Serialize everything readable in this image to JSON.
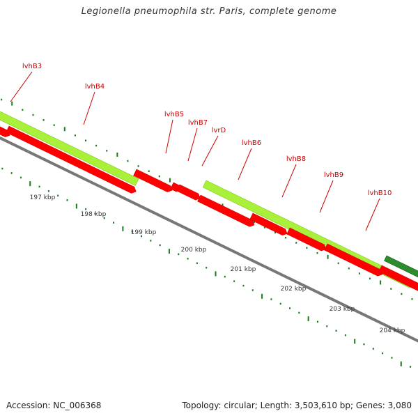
{
  "title": "Legionella pneumophila str. Paris, complete genome",
  "footer": {
    "accession": "Accession: NC_006368",
    "summary": "Topology: circular; Length: 3,503,610 bp; Genes: 3,080"
  },
  "colors": {
    "gene_forward": "#a9f03a",
    "gene_reverse": "#ff0000",
    "gene_highlight": "#2e8b2e",
    "backbone": "#777777",
    "ticks": "#1a7a1a",
    "gene_label": "#cc0000",
    "scale_label": "#333333"
  },
  "scale": {
    "unit": "kbp",
    "labels": [
      "197 kbp",
      "198 kbp",
      "199 kbp",
      "200 kbp",
      "201 kbp",
      "202 kbp",
      "203 kbp",
      "204 kbp"
    ]
  },
  "gene_labels": [
    "lvhB3",
    "lvhB4",
    "lvhB5",
    "lvhB7",
    "lvrD",
    "lvhB6",
    "lvhB8",
    "lvhB9",
    "lvhB10"
  ]
}
